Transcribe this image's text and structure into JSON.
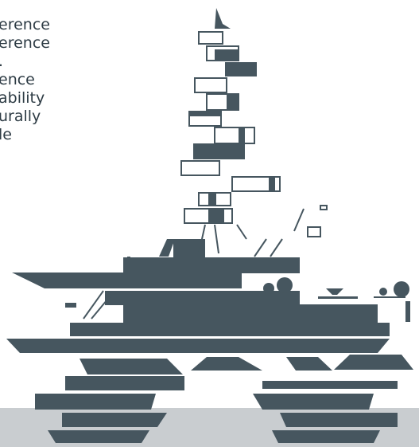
{
  "text_lines": [
    "erence",
    "erence",
    ".",
    "ence",
    "ability",
    "urally",
    "le"
  ]
}
